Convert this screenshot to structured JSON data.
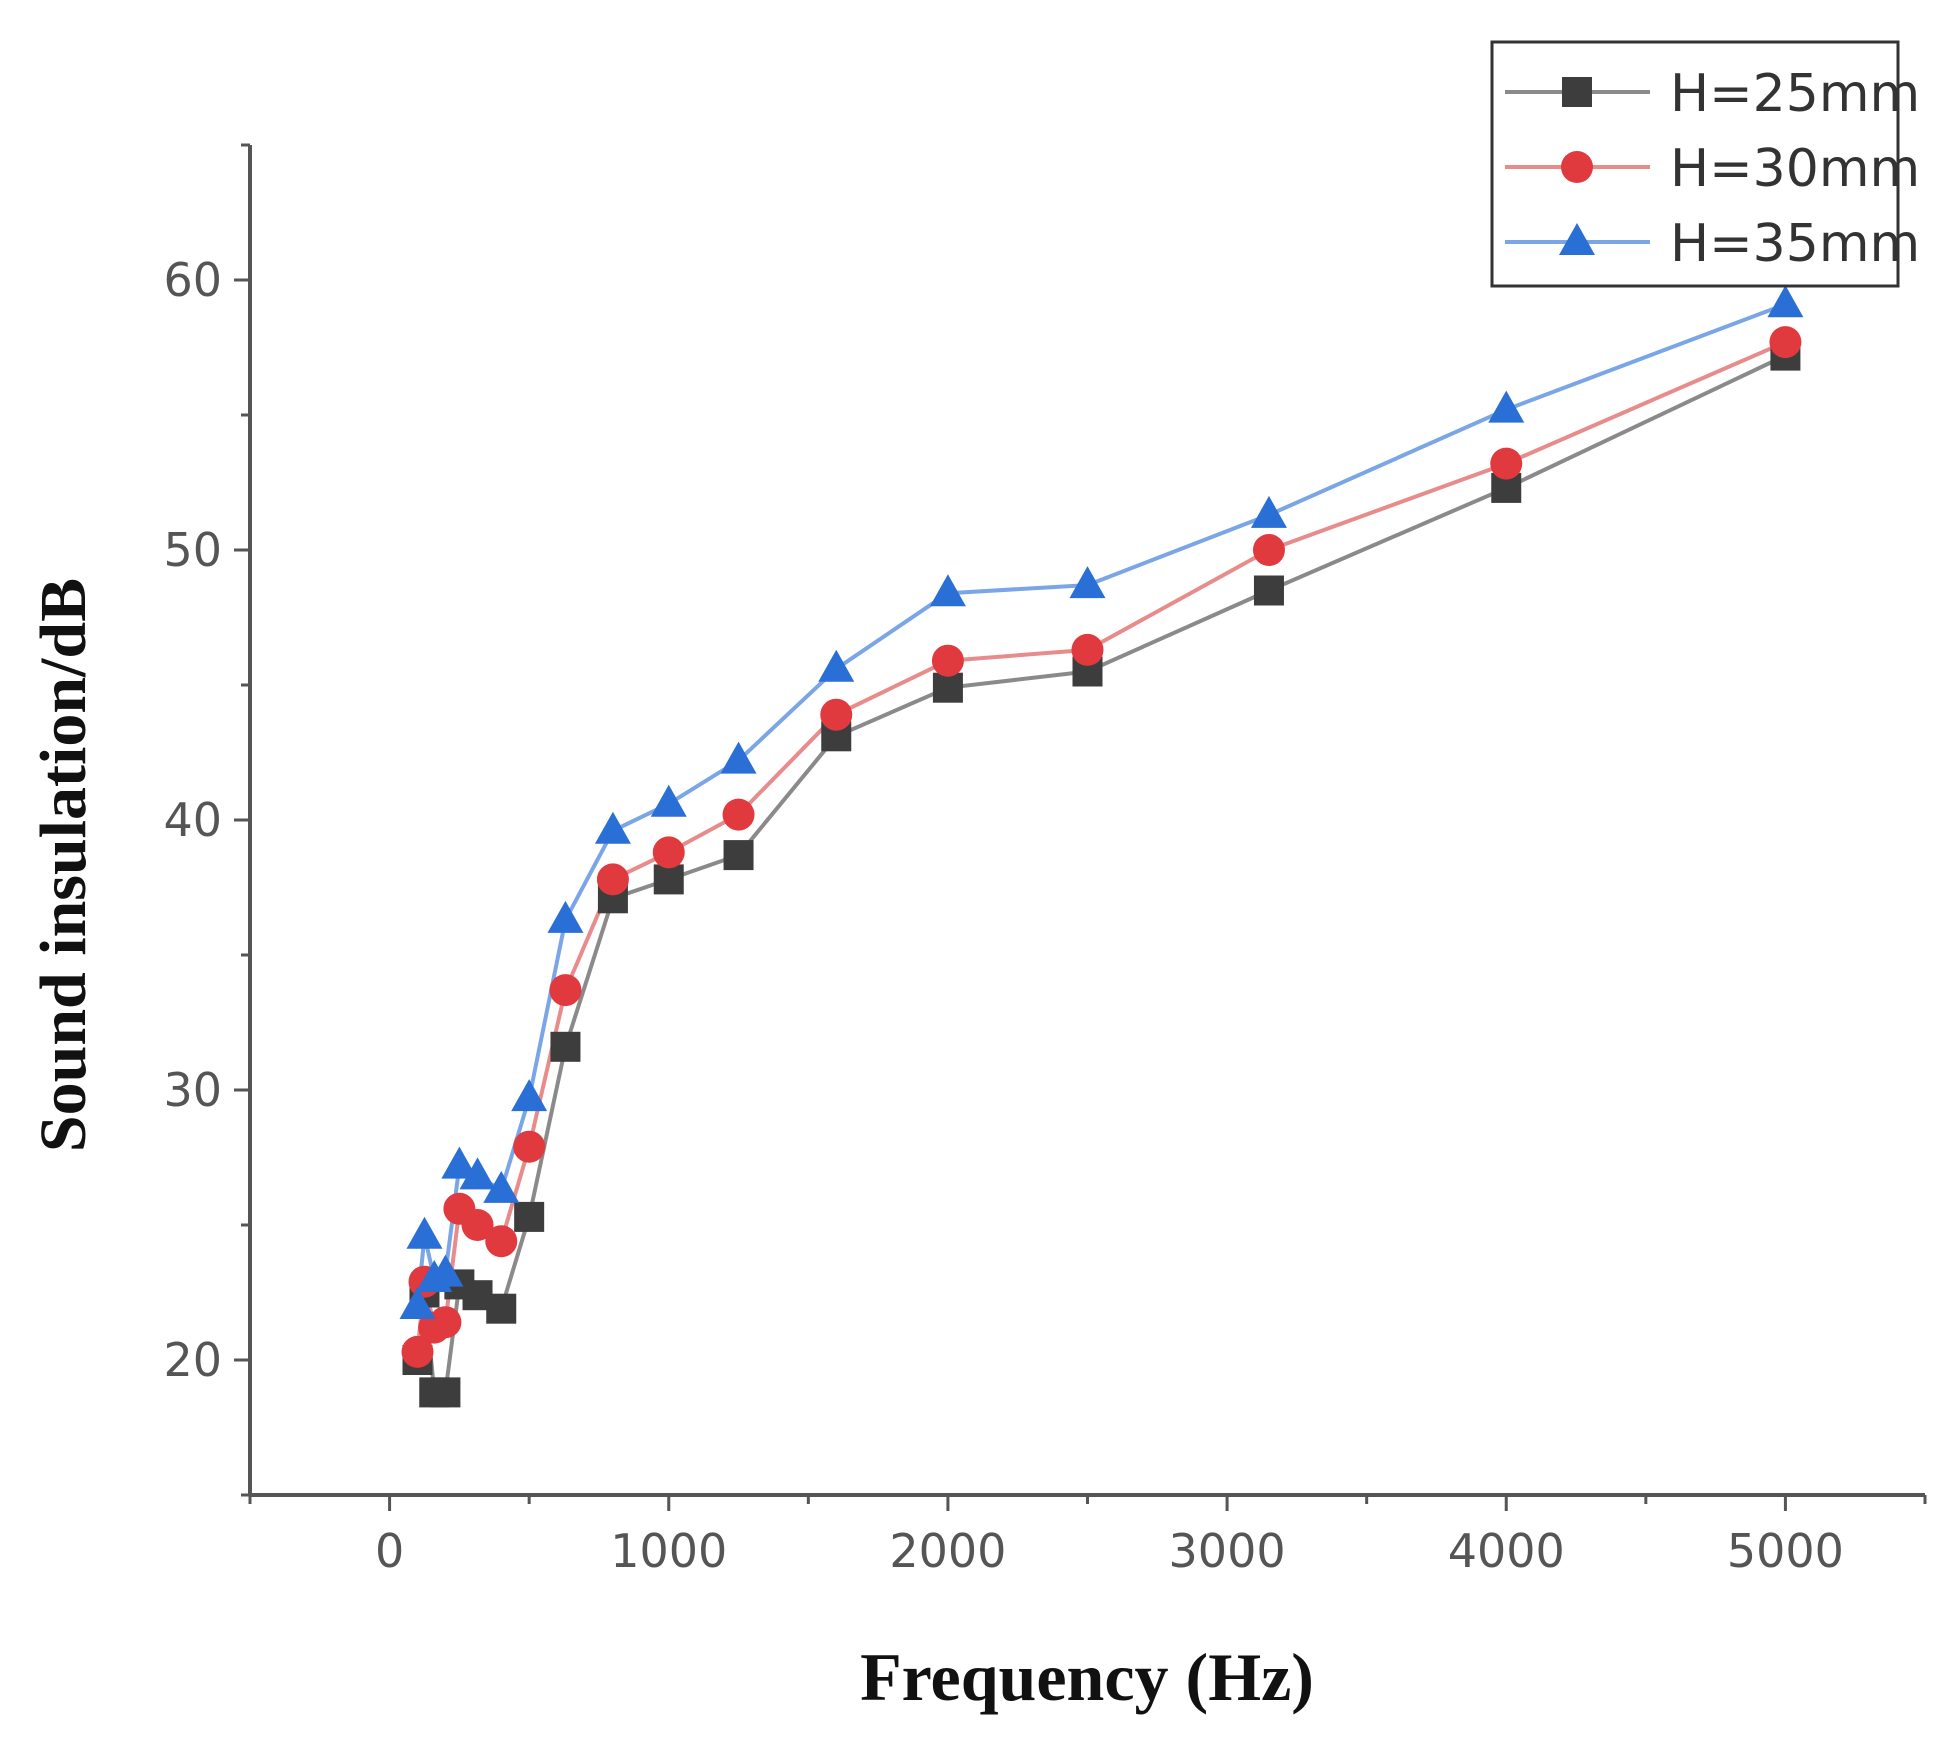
{
  "chart_data": {
    "type": "line",
    "title": "",
    "xlabel": "Frequency (Hz)",
    "ylabel": "Sound insulation/dB",
    "xlim": [
      -500,
      5500
    ],
    "ylim": [
      15,
      65
    ],
    "xticks": [
      0,
      1000,
      2000,
      3000,
      4000,
      5000
    ],
    "xtick_labels": [
      "0",
      "1000",
      "2000",
      "3000",
      "4000",
      "5000"
    ],
    "yticks": [
      20,
      30,
      40,
      50,
      60
    ],
    "ytick_labels": [
      "20",
      "30",
      "40",
      "50",
      "60"
    ],
    "legend_position": "top-right",
    "x": [
      100,
      125,
      160,
      200,
      250,
      315,
      400,
      500,
      630,
      800,
      1000,
      1250,
      1600,
      2000,
      2500,
      3150,
      4000,
      5000
    ],
    "series": [
      {
        "name": "H=25mm",
        "marker": "square",
        "color": "#3d3d3d",
        "line_color": "#8a8a8a",
        "values": [
          20.0,
          22.5,
          18.8,
          18.8,
          22.8,
          22.4,
          21.9,
          25.3,
          31.6,
          37.1,
          37.8,
          38.7,
          43.1,
          44.9,
          45.5,
          48.5,
          52.3,
          57.2
        ]
      },
      {
        "name": "H=30mm",
        "marker": "circle",
        "color": "#e0393e",
        "line_color": "#e88b8b",
        "values": [
          20.3,
          22.9,
          21.2,
          21.4,
          25.6,
          25.0,
          24.4,
          27.9,
          33.7,
          37.8,
          38.8,
          40.2,
          43.9,
          45.9,
          46.3,
          50.0,
          53.2,
          57.7
        ]
      },
      {
        "name": "H=35mm",
        "marker": "triangle",
        "color": "#2a6fd6",
        "line_color": "#7aa5e6",
        "values": [
          22.0,
          24.6,
          23.0,
          23.2,
          27.2,
          26.8,
          26.3,
          29.7,
          36.3,
          39.6,
          40.6,
          42.2,
          45.6,
          48.4,
          48.7,
          51.3,
          55.2,
          59.1
        ]
      }
    ]
  }
}
